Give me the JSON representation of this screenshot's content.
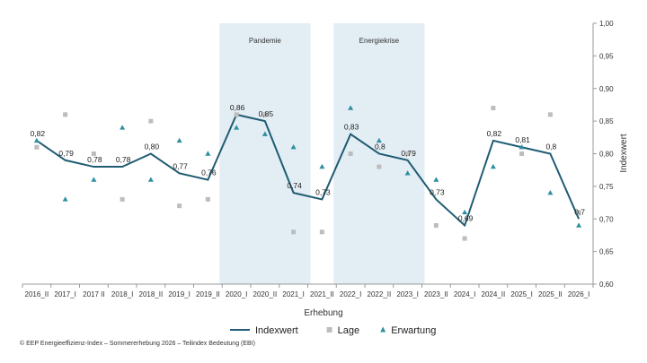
{
  "chart_data": {
    "type": "line",
    "xlabel": "Erhebung",
    "ylabel": "Indexwert",
    "ylim": [
      0.6,
      1.0
    ],
    "yticks": [
      "0,60",
      "0,65",
      "0,70",
      "0,75",
      "0,80",
      "0,85",
      "0,90",
      "0,95",
      "1,00"
    ],
    "categories": [
      "2016_II",
      "2017_I",
      "2017 II",
      "2018_I",
      "2018_II",
      "2019_I",
      "2019_II",
      "2020_I",
      "2020_II",
      "2021_I",
      "2021_II",
      "2022_I",
      "2022_II",
      "2023_I",
      "2023_II",
      "2024_I",
      "2024_II",
      "2025_I",
      "2025_II",
      "2026_I"
    ],
    "series": [
      {
        "name": "Indexwert",
        "kind": "line",
        "color": "#1f5c73",
        "values": [
          0.82,
          0.79,
          0.78,
          0.78,
          0.8,
          0.77,
          0.76,
          0.86,
          0.85,
          0.74,
          0.73,
          0.83,
          0.8,
          0.79,
          0.73,
          0.69,
          0.82,
          0.81,
          0.8,
          0.7
        ],
        "labels": [
          "0,82",
          "0,79",
          "0,78",
          "0,78",
          "0,80",
          "0,77",
          "0,76",
          "0,86",
          "0,85",
          "0,74",
          "0,73",
          "0,83",
          "0,8",
          "0,79",
          "0,73",
          "0,69",
          "0,82",
          "0,81",
          "0,8",
          "0,7"
        ]
      },
      {
        "name": "Lage",
        "kind": "square",
        "color": "#bdbdbd",
        "values": [
          0.81,
          0.86,
          0.8,
          0.73,
          0.85,
          0.72,
          0.73,
          0.86,
          0.86,
          0.68,
          0.68,
          0.8,
          0.78,
          0.8,
          0.69,
          0.67,
          0.87,
          0.8,
          0.86,
          0.71
        ]
      },
      {
        "name": "Erwartung",
        "kind": "triangle",
        "color": "#2e8fa0",
        "values": [
          0.82,
          0.73,
          0.76,
          0.84,
          0.76,
          0.82,
          0.8,
          0.84,
          0.83,
          0.81,
          0.78,
          0.87,
          0.82,
          0.77,
          0.76,
          0.71,
          0.78,
          0.81,
          0.74,
          0.69
        ]
      }
    ],
    "bands": [
      {
        "label": "Pandemie",
        "from": "2020_I",
        "to": "2021_I",
        "color": "#e3edf4"
      },
      {
        "label": "Energiekrise",
        "from": "2022_I",
        "to": "2023_I",
        "color": "#e3edf4"
      }
    ],
    "legend_position": "bottom"
  },
  "footer": "© EEP Energieeffizienz-Index – Sommererhebung 2026 – Teilindex Bedeutung (EBI)"
}
